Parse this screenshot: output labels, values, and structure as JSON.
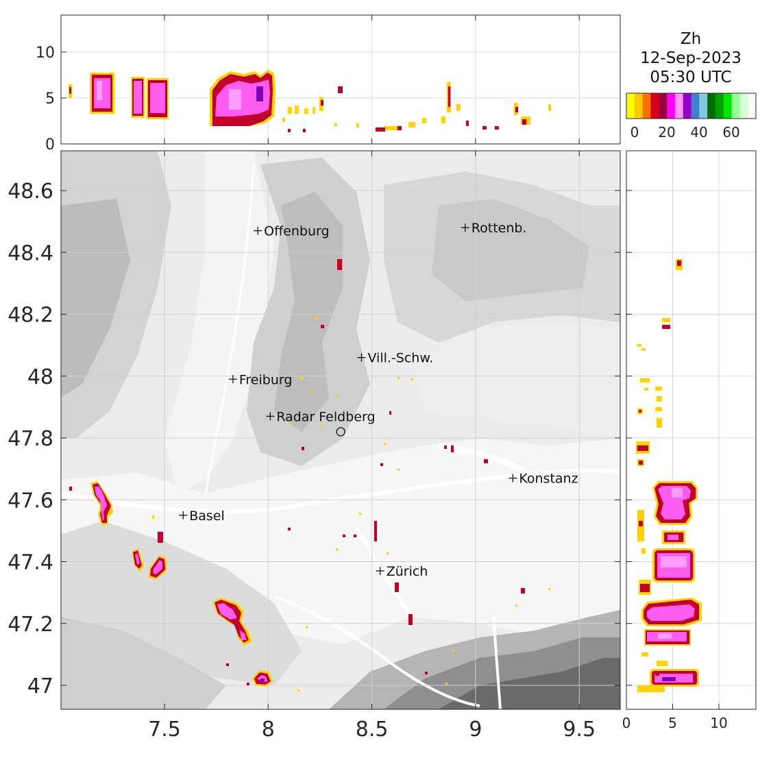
{
  "title": {
    "variable": "Zh",
    "date": "12-Sep-2023",
    "time": "05:30 UTC"
  },
  "colorbar": {
    "colors": [
      "#ffff00",
      "#ffc800",
      "#ff6e00",
      "#d7001c",
      "#9b0040",
      "#ff00ff",
      "#ff96ff",
      "#9600c8",
      "#3c82c8",
      "#82c8e6",
      "#006e00",
      "#00a000",
      "#00e600",
      "#96ff96",
      "#d7ffd7",
      "#f5fff5"
    ],
    "tick_labels": [
      "0",
      "20",
      "40",
      "60"
    ]
  },
  "top_panel": {
    "y_ticks": [
      "0",
      "5",
      "10"
    ]
  },
  "right_panel": {
    "x_ticks": [
      "0",
      "5",
      "10"
    ]
  },
  "map": {
    "x_ticks": [
      "7.5",
      "8",
      "8.5",
      "9",
      "9.5"
    ],
    "y_ticks": [
      "47",
      "47.2",
      "47.4",
      "47.6",
      "47.8",
      "48",
      "48.2",
      "48.4",
      "48.6"
    ],
    "cities": [
      {
        "name": "Offenburg",
        "lon": 7.95,
        "lat": 48.47
      },
      {
        "name": "Rottenb.",
        "lon": 8.95,
        "lat": 48.48
      },
      {
        "name": "Vill.-Schw.",
        "lon": 8.45,
        "lat": 48.06
      },
      {
        "name": "Freiburg",
        "lon": 7.83,
        "lat": 47.99
      },
      {
        "name": "Radar Feldberg",
        "lon": 8.01,
        "lat": 47.87
      },
      {
        "name": "Konstanz",
        "lon": 9.18,
        "lat": 47.67
      },
      {
        "name": "Basel",
        "lon": 7.59,
        "lat": 47.55
      },
      {
        "name": "Zürich",
        "lon": 8.54,
        "lat": 47.37
      }
    ],
    "radar_site": {
      "lon": 8.35,
      "lat": 47.82
    }
  }
}
